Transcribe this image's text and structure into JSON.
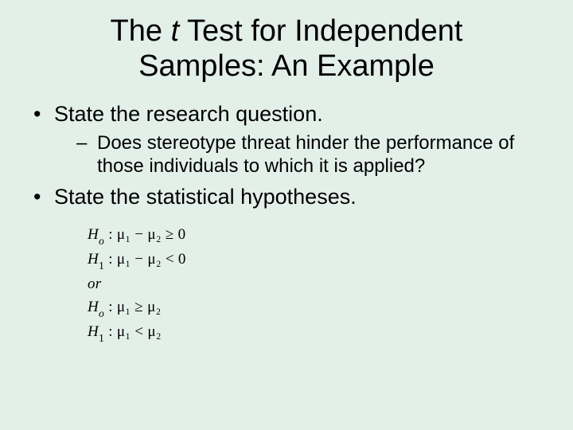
{
  "background_color": "#e3efe9",
  "text_color": "#000000",
  "title": {
    "pre": "The ",
    "italic": "t",
    "post": " Test for Independent Samples: An Example",
    "font_size": 38
  },
  "bullets": [
    {
      "text": "State the research question.",
      "subs": [
        "Does stereotype threat hinder the performance of those individuals to which it is applied?"
      ]
    },
    {
      "text": "State the statistical hypotheses.",
      "subs": []
    }
  ],
  "math": {
    "font_family": "Times New Roman",
    "font_size": 19,
    "lines": [
      {
        "label_italic": "H",
        "label_sub_italic": "o",
        "expr": " : μ₁ − μ₂ ≥ 0"
      },
      {
        "label_italic": "H",
        "label_sub_roman": "1",
        "expr": " : μ₁ − μ₂ < 0"
      },
      {
        "or": "or"
      },
      {
        "label_italic": "H",
        "label_sub_italic": "o",
        "expr": " : μ₁ ≥ μ₂"
      },
      {
        "label_italic": "H",
        "label_sub_roman": "1",
        "expr": " : μ₁ < μ₂"
      }
    ]
  }
}
